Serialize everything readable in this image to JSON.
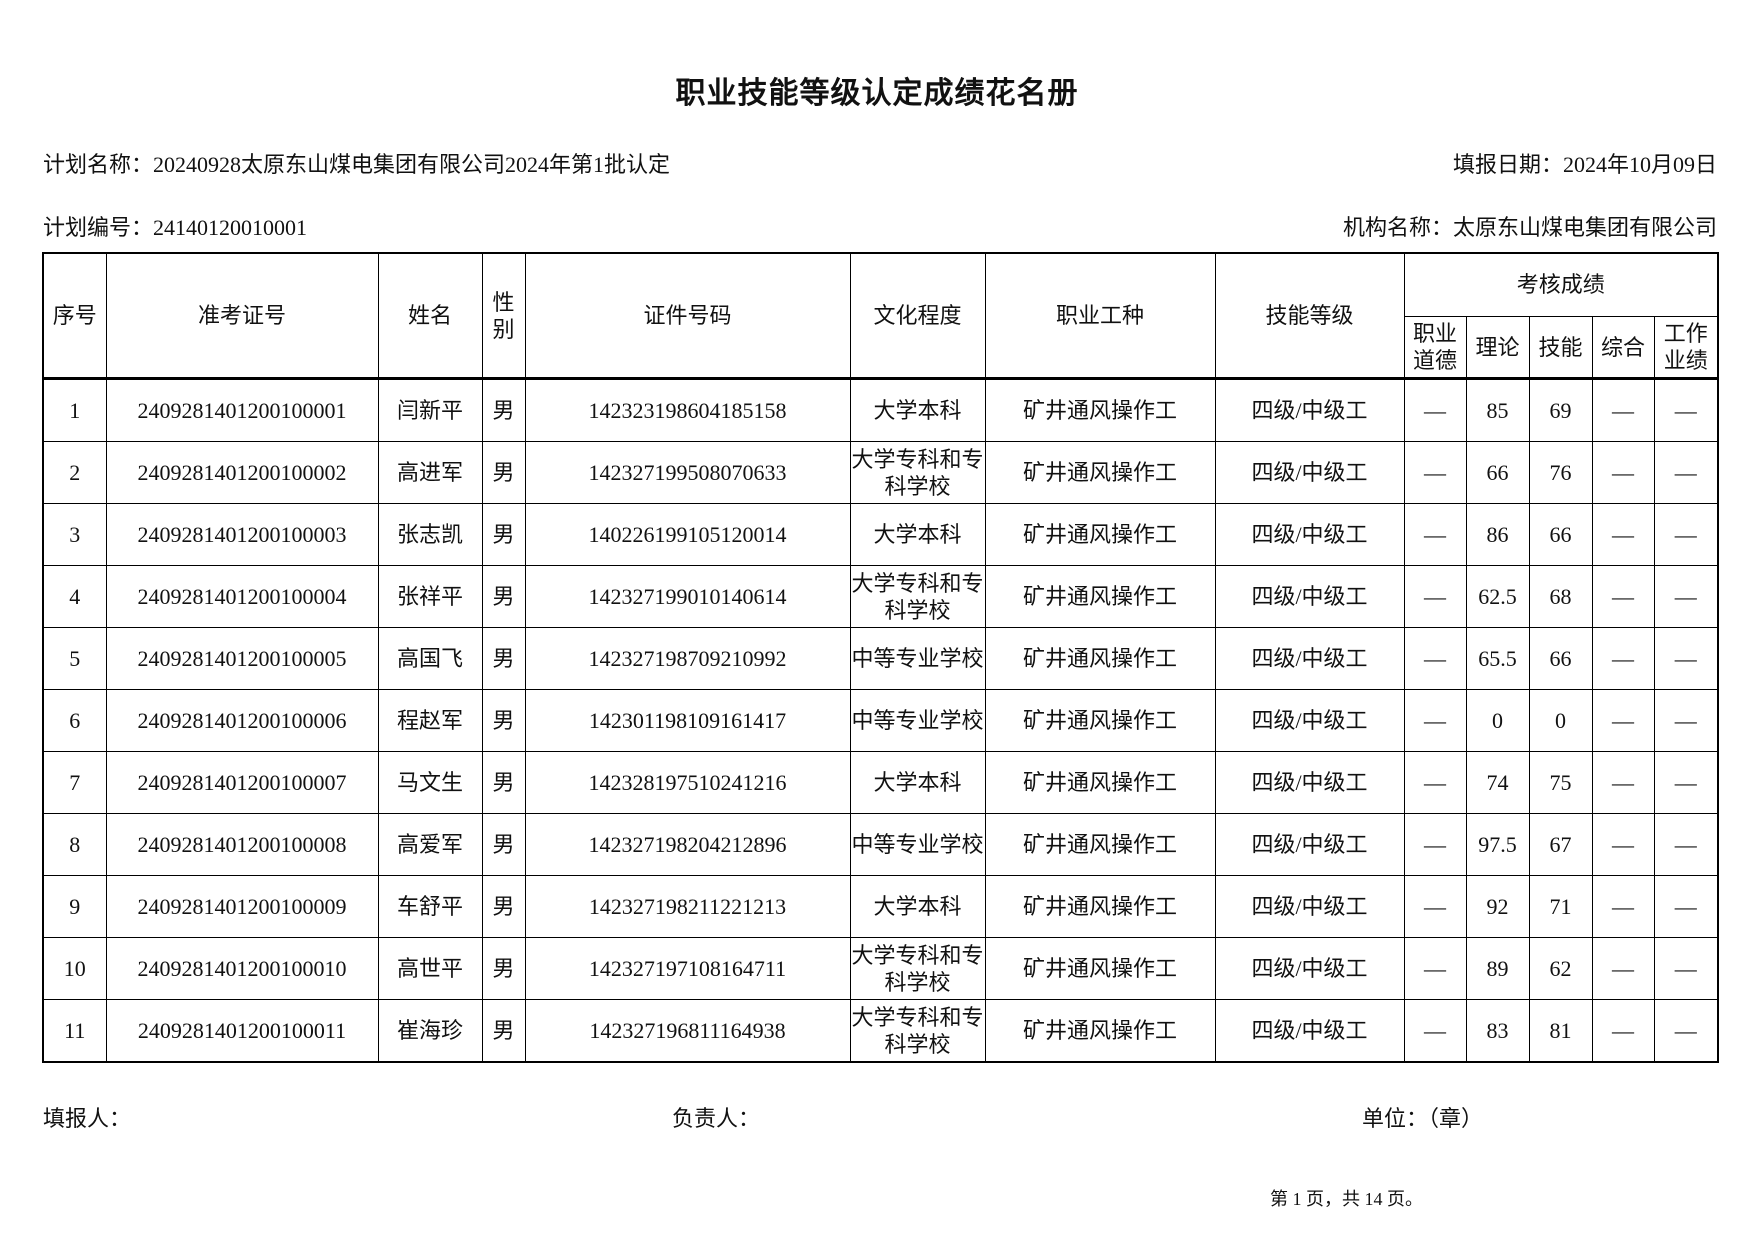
{
  "title": "职业技能等级认定成绩花名册",
  "info": {
    "plan_name_label": "计划名称：",
    "plan_name": "20240928太原东山煤电集团有限公司2024年第1批认定",
    "report_date_label": "填报日期：",
    "report_date": "2024年10月09日",
    "plan_no_label": "计划编号：",
    "plan_no": "24140120010001",
    "org_label": "机构名称：",
    "org": "太原东山煤电集团有限公司"
  },
  "table": {
    "headers": {
      "seq": "序号",
      "exam_no": "准考证号",
      "name": "姓名",
      "gender": "性别",
      "id_no": "证件号码",
      "education": "文化程度",
      "occupation": "职业工种",
      "level": "技能等级",
      "scores": "考核成绩",
      "ethics": "职业道德",
      "theory": "理论",
      "skill": "技能",
      "overall": "综合",
      "work": "工作业绩"
    },
    "rows": [
      [
        "1",
        "2409281401200100001",
        "闫新平",
        "男",
        "142323198604185158",
        "大学本科",
        "矿井通风操作工",
        "四级/中级工",
        "—",
        "85",
        "69",
        "—",
        "—"
      ],
      [
        "2",
        "2409281401200100002",
        "高进军",
        "男",
        "142327199508070633",
        "大学专科和专科学校",
        "矿井通风操作工",
        "四级/中级工",
        "—",
        "66",
        "76",
        "—",
        "—"
      ],
      [
        "3",
        "2409281401200100003",
        "张志凯",
        "男",
        "140226199105120014",
        "大学本科",
        "矿井通风操作工",
        "四级/中级工",
        "—",
        "86",
        "66",
        "—",
        "—"
      ],
      [
        "4",
        "2409281401200100004",
        "张祥平",
        "男",
        "142327199010140614",
        "大学专科和专科学校",
        "矿井通风操作工",
        "四级/中级工",
        "—",
        "62.5",
        "68",
        "—",
        "—"
      ],
      [
        "5",
        "2409281401200100005",
        "高国飞",
        "男",
        "142327198709210992",
        "中等专业学校",
        "矿井通风操作工",
        "四级/中级工",
        "—",
        "65.5",
        "66",
        "—",
        "—"
      ],
      [
        "6",
        "2409281401200100006",
        "程赵军",
        "男",
        "142301198109161417",
        "中等专业学校",
        "矿井通风操作工",
        "四级/中级工",
        "—",
        "0",
        "0",
        "—",
        "—"
      ],
      [
        "7",
        "2409281401200100007",
        "马文生",
        "男",
        "142328197510241216",
        "大学本科",
        "矿井通风操作工",
        "四级/中级工",
        "—",
        "74",
        "75",
        "—",
        "—"
      ],
      [
        "8",
        "2409281401200100008",
        "高爱军",
        "男",
        "142327198204212896",
        "中等专业学校",
        "矿井通风操作工",
        "四级/中级工",
        "—",
        "97.5",
        "67",
        "—",
        "—"
      ],
      [
        "9",
        "2409281401200100009",
        "车舒平",
        "男",
        "142327198211221213",
        "大学本科",
        "矿井通风操作工",
        "四级/中级工",
        "—",
        "92",
        "71",
        "—",
        "—"
      ],
      [
        "10",
        "2409281401200100010",
        "高世平",
        "男",
        "142327197108164711",
        "大学专科和专科学校",
        "矿井通风操作工",
        "四级/中级工",
        "—",
        "89",
        "62",
        "—",
        "—"
      ],
      [
        "11",
        "2409281401200100011",
        "崔海珍",
        "男",
        "142327196811164938",
        "大学专科和专科学校",
        "矿井通风操作工",
        "四级/中级工",
        "—",
        "83",
        "81",
        "—",
        "—"
      ]
    ]
  },
  "footer": {
    "filler": "填报人：",
    "manager": "负责人：",
    "unit": "单位：（章）",
    "page": "第 1 页，共 14 页。"
  }
}
